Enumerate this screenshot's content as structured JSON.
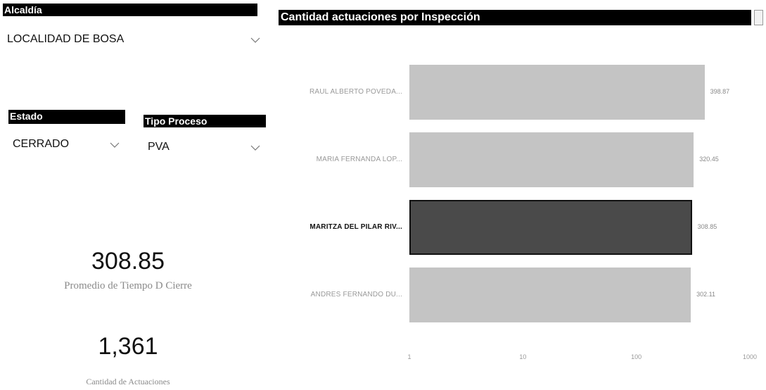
{
  "slicers": {
    "alcaldia": {
      "label": "Alcaldía",
      "value": "LOCALIDAD DE BOSA"
    },
    "estado": {
      "label": "Estado",
      "value": "CERRADO"
    },
    "tipo_proceso": {
      "label": "Tipo Proceso",
      "value": "PVA"
    }
  },
  "kpis": [
    {
      "value": "308.85",
      "label": "Promedio de Tiempo D Cierre"
    },
    {
      "value": "1,361",
      "label": "Cantidad de Actuaciones"
    }
  ],
  "chart_title": "Cantidad actuaciones por Inspección",
  "chart_data": {
    "type": "bar",
    "orientation": "horizontal",
    "scale": "log",
    "xlim": [
      1,
      1000
    ],
    "xticks": [
      "1",
      "10",
      "100",
      "1000"
    ],
    "categories": [
      "RAUL ALBERTO POVEDA...",
      "MARIA FERNANDA LOP...",
      "MARITZA DEL PILAR RIV...",
      "ANDRES FERNANDO DU..."
    ],
    "values": [
      398.87,
      320.45,
      308.85,
      302.11
    ],
    "value_labels": [
      "398.87",
      "320.45",
      "308.85",
      "302.11"
    ],
    "highlighted": "MARITZA DEL PILAR RIV...",
    "colors": {
      "bar": "#c4c4c4",
      "highlight": "#4a4a4a"
    }
  }
}
